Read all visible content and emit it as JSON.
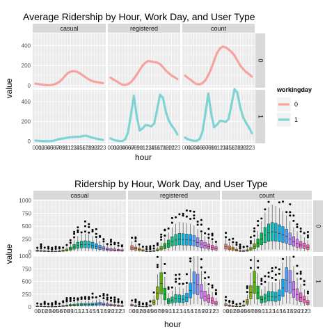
{
  "chart_data": [
    {
      "type": "line",
      "title": "Average Ridership by Hour, Work Day, and User Type",
      "xlabel": "hour",
      "ylabel": "value",
      "facet_columns": [
        "casual",
        "registered",
        "count"
      ],
      "facet_rows": [
        "0",
        "1"
      ],
      "x": [
        0,
        1,
        2,
        3,
        4,
        5,
        6,
        7,
        8,
        9,
        10,
        11,
        12,
        13,
        14,
        15,
        16,
        17,
        18,
        19,
        20,
        21,
        22,
        23
      ],
      "x_tick_labels": [
        "00",
        "01",
        "02",
        "03",
        "04",
        "05",
        "06",
        "07",
        "08",
        "09",
        "10",
        "11",
        "12",
        "13",
        "14",
        "15",
        "16",
        "17",
        "18",
        "19",
        "20",
        "21",
        "22",
        "23"
      ],
      "yticks": [
        0,
        200,
        400
      ],
      "ylim": [
        -20,
        520
      ],
      "grid": true,
      "legend": {
        "title": "workingday",
        "position": "right",
        "entries": [
          {
            "label": "0",
            "color": "#f4a3a0"
          },
          {
            "label": "1",
            "color": "#7fd3d3"
          }
        ]
      },
      "panels": [
        {
          "column": "casual",
          "row": "0",
          "color": "#f4a3a0",
          "values": [
            20,
            16,
            12,
            8,
            5,
            6,
            10,
            20,
            35,
            60,
            95,
            125,
            140,
            145,
            140,
            125,
            105,
            85,
            65,
            50,
            40,
            35,
            30,
            25
          ]
        },
        {
          "column": "registered",
          "row": "0",
          "color": "#f4a3a0",
          "values": [
            80,
            60,
            45,
            25,
            10,
            8,
            15,
            35,
            70,
            110,
            155,
            200,
            230,
            245,
            240,
            235,
            230,
            215,
            185,
            150,
            125,
            100,
            85,
            65
          ]
        },
        {
          "column": "count",
          "row": "0",
          "color": "#f4a3a0",
          "values": [
            100,
            76,
            57,
            33,
            15,
            14,
            25,
            55,
            105,
            170,
            250,
            325,
            370,
            390,
            380,
            360,
            335,
            300,
            250,
            200,
            165,
            135,
            115,
            90
          ]
        },
        {
          "column": "casual",
          "row": "1",
          "color": "#7fd3d3",
          "values": [
            8,
            6,
            4,
            2,
            2,
            3,
            6,
            14,
            22,
            28,
            32,
            38,
            42,
            44,
            45,
            46,
            52,
            58,
            50,
            40,
            32,
            26,
            20,
            14
          ]
        },
        {
          "column": "registered",
          "row": "1",
          "color": "#7fd3d3",
          "values": [
            30,
            15,
            8,
            4,
            3,
            20,
            90,
            270,
            460,
            250,
            110,
            130,
            165,
            160,
            150,
            180,
            320,
            470,
            440,
            300,
            210,
            160,
            120,
            70
          ]
        },
        {
          "column": "count",
          "row": "1",
          "color": "#7fd3d3",
          "values": [
            38,
            21,
            12,
            6,
            5,
            23,
            96,
            284,
            482,
            278,
            142,
            168,
            207,
            204,
            195,
            226,
            372,
            528,
            490,
            340,
            242,
            186,
            140,
            84
          ]
        }
      ]
    },
    {
      "type": "box",
      "title": "Ridership by Hour, Work Day, and User Type",
      "xlabel": "hour",
      "ylabel": "value",
      "facet_columns": [
        "casual",
        "registered",
        "count"
      ],
      "facet_rows": [
        "0",
        "1"
      ],
      "x_tick_labels": [
        "00",
        "01",
        "02",
        "03",
        "04",
        "05",
        "06",
        "07",
        "08",
        "09",
        "10",
        "11",
        "12",
        "13",
        "14",
        "15",
        "16",
        "17",
        "18",
        "19",
        "20",
        "21",
        "22",
        "23"
      ],
      "yticks": [
        0,
        250,
        500,
        750,
        1000
      ],
      "ylim": [
        0,
        1000
      ],
      "grid": true,
      "fill_colors_by_hour": [
        "#f8766d",
        "#f07e4a",
        "#e58700",
        "#d69100",
        "#c49a00",
        "#b0a100",
        "#99a800",
        "#7cae00",
        "#53b400",
        "#00b81f",
        "#00bc56",
        "#00bf7d",
        "#00c19c",
        "#00c0b8",
        "#00bcd8",
        "#00b4ef",
        "#00a9ff",
        "#529eff",
        "#9590ff",
        "#c77cff",
        "#e76bf3",
        "#fa62db",
        "#ff61c3",
        "#ff65ac"
      ],
      "panels": [
        {
          "column": "casual",
          "row": "0",
          "median": [
            20,
            16,
            12,
            8,
            5,
            6,
            10,
            20,
            35,
            60,
            95,
            125,
            140,
            145,
            140,
            125,
            105,
            85,
            65,
            50,
            40,
            35,
            30,
            25
          ]
        },
        {
          "column": "registered",
          "row": "0",
          "median": [
            80,
            60,
            45,
            25,
            10,
            8,
            15,
            35,
            70,
            110,
            155,
            200,
            230,
            245,
            240,
            235,
            230,
            215,
            185,
            150,
            125,
            100,
            85,
            65
          ]
        },
        {
          "column": "count",
          "row": "0",
          "median": [
            100,
            76,
            57,
            33,
            15,
            14,
            25,
            55,
            105,
            170,
            250,
            325,
            370,
            390,
            380,
            360,
            335,
            300,
            250,
            200,
            165,
            135,
            115,
            90
          ]
        },
        {
          "column": "casual",
          "row": "1",
          "median": [
            8,
            6,
            4,
            2,
            2,
            3,
            6,
            14,
            22,
            28,
            32,
            38,
            42,
            44,
            45,
            46,
            52,
            58,
            50,
            40,
            32,
            26,
            20,
            14
          ]
        },
        {
          "column": "registered",
          "row": "1",
          "median": [
            30,
            15,
            8,
            4,
            3,
            20,
            90,
            270,
            460,
            250,
            110,
            130,
            165,
            160,
            150,
            180,
            320,
            470,
            440,
            300,
            210,
            160,
            120,
            70
          ]
        },
        {
          "column": "count",
          "row": "1",
          "median": [
            38,
            21,
            12,
            6,
            5,
            23,
            96,
            284,
            482,
            278,
            142,
            168,
            207,
            204,
            195,
            226,
            372,
            528,
            490,
            340,
            242,
            186,
            140,
            84
          ]
        }
      ]
    }
  ]
}
